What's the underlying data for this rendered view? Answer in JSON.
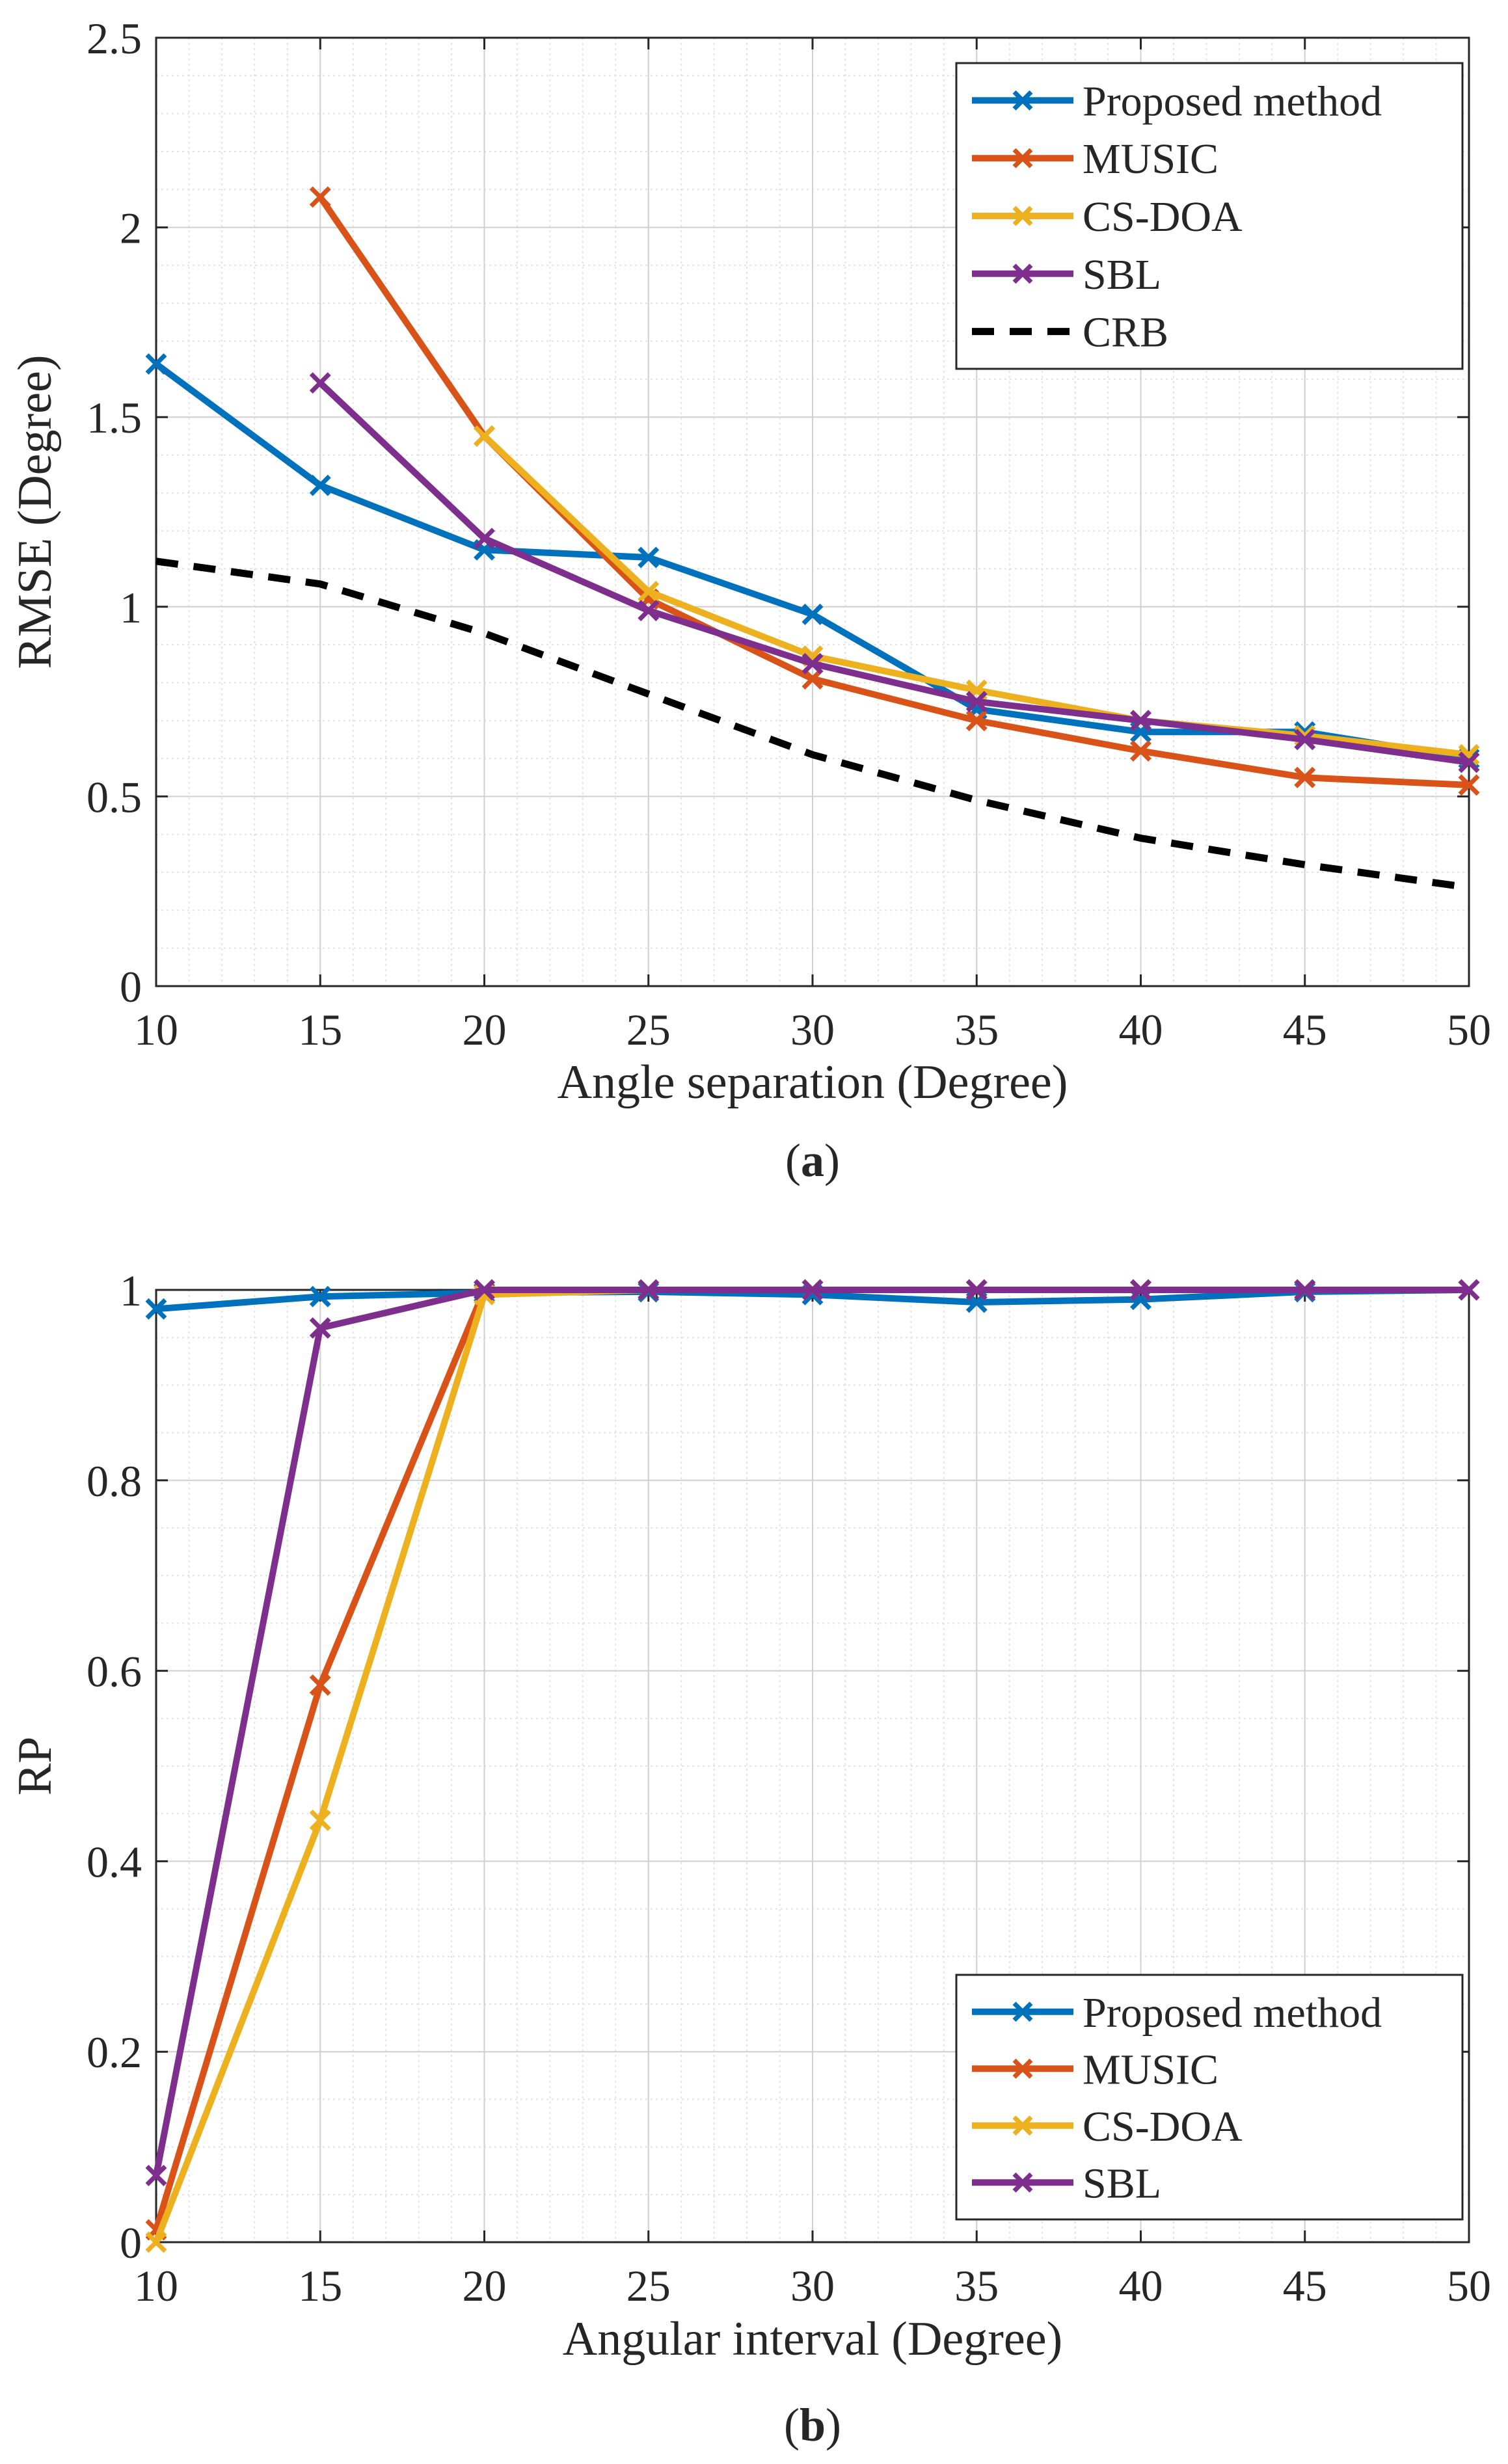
{
  "chart_data": [
    {
      "type": "line",
      "caption": "(a)",
      "caption_letter": "a",
      "xlabel": "Angle separation (Degree)",
      "ylabel": "RMSE (Degree)",
      "xlim": [
        10,
        50
      ],
      "ylim": [
        0,
        2.5
      ],
      "xticks": [
        "10",
        "15",
        "20",
        "25",
        "30",
        "35",
        "40",
        "45",
        "50"
      ],
      "yticks": [
        "0",
        "0.5",
        "1",
        "1.5",
        "2",
        "2.5"
      ],
      "grid": true,
      "minor_grid": true,
      "legend_position": "top-right",
      "series": [
        {
          "name": "Proposed method",
          "color": "#0072BD",
          "marker": "x",
          "style": "solid",
          "x": [
            10,
            15,
            20,
            25,
            30,
            35,
            40,
            45,
            50
          ],
          "y": [
            1.64,
            1.32,
            1.15,
            1.13,
            0.98,
            0.73,
            0.67,
            0.67,
            0.6
          ]
        },
        {
          "name": "MUSIC",
          "color": "#D95319",
          "marker": "x",
          "style": "solid",
          "x": [
            15,
            20,
            25,
            30,
            35,
            40,
            45,
            50
          ],
          "y": [
            2.08,
            1.45,
            1.02,
            0.81,
            0.7,
            0.62,
            0.55,
            0.53
          ]
        },
        {
          "name": "CS-DOA",
          "color": "#EDB120",
          "marker": "x",
          "style": "solid",
          "x": [
            20,
            25,
            30,
            35,
            40,
            45,
            50
          ],
          "y": [
            1.45,
            1.04,
            0.87,
            0.78,
            0.7,
            0.66,
            0.61
          ]
        },
        {
          "name": "SBL",
          "color": "#7E2F8E",
          "marker": "x",
          "style": "solid",
          "x": [
            15,
            20,
            25,
            30,
            35,
            40,
            45,
            50
          ],
          "y": [
            1.59,
            1.18,
            0.99,
            0.85,
            0.75,
            0.7,
            0.65,
            0.59
          ]
        },
        {
          "name": "CRB",
          "color": "#000000",
          "marker": "none",
          "style": "dashed",
          "x": [
            10,
            15,
            20,
            25,
            30,
            35,
            40,
            45,
            50
          ],
          "y": [
            1.12,
            1.06,
            0.93,
            0.77,
            0.61,
            0.49,
            0.39,
            0.32,
            0.26
          ]
        }
      ]
    },
    {
      "type": "line",
      "caption": "(b)",
      "caption_letter": "b",
      "xlabel": "Angular interval (Degree)",
      "ylabel": "RP",
      "xlim": [
        10,
        50
      ],
      "ylim": [
        0,
        1
      ],
      "xticks": [
        "10",
        "15",
        "20",
        "25",
        "30",
        "35",
        "40",
        "45",
        "50"
      ],
      "yticks": [
        "0",
        "0.2",
        "0.4",
        "0.6",
        "0.8",
        "1"
      ],
      "grid": true,
      "minor_grid": true,
      "legend_position": "bottom-right",
      "series": [
        {
          "name": "Proposed method",
          "color": "#0072BD",
          "marker": "x",
          "style": "solid",
          "x": [
            10,
            15,
            20,
            25,
            30,
            35,
            40,
            45,
            50
          ],
          "y": [
            0.98,
            0.993,
            0.997,
            0.998,
            0.995,
            0.987,
            0.99,
            0.998,
            1.0
          ]
        },
        {
          "name": "MUSIC",
          "color": "#D95319",
          "marker": "x",
          "style": "solid",
          "x": [
            10,
            15,
            20,
            25,
            30,
            35,
            40,
            45,
            50
          ],
          "y": [
            0.013,
            0.585,
            1.0,
            1.0,
            1.0,
            1.0,
            1.0,
            1.0,
            1.0
          ]
        },
        {
          "name": "CS-DOA",
          "color": "#EDB120",
          "marker": "x",
          "style": "solid",
          "x": [
            10,
            15,
            20,
            25,
            30,
            35,
            40,
            45,
            50
          ],
          "y": [
            0.0,
            0.443,
            0.995,
            1.0,
            1.0,
            1.0,
            1.0,
            1.0,
            1.0
          ]
        },
        {
          "name": "SBL",
          "color": "#7E2F8E",
          "marker": "x",
          "style": "solid",
          "x": [
            10,
            15,
            20,
            25,
            30,
            35,
            40,
            45,
            50
          ],
          "y": [
            0.07,
            0.96,
            1.0,
            1.0,
            1.0,
            1.0,
            1.0,
            1.0,
            1.0
          ]
        }
      ]
    }
  ]
}
